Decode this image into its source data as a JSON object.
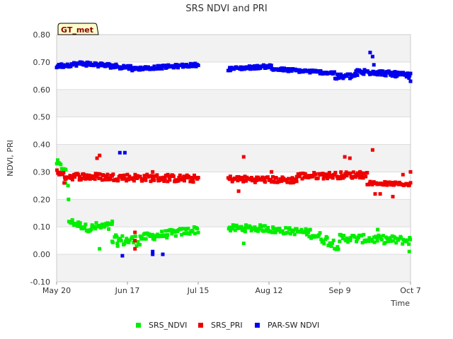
{
  "chart_data": {
    "type": "scatter",
    "title": "SRS NDVI and PRI",
    "xlabel": "Time",
    "ylabel": "NDVI, PRI",
    "badge": "GT_met",
    "ylim": [
      -0.1,
      0.8
    ],
    "yticks": [
      -0.1,
      0.0,
      0.1,
      0.2,
      0.3,
      0.4,
      0.5,
      0.6,
      0.7,
      0.8
    ],
    "ytick_labels": [
      "-0.10",
      "0.00",
      "0.10",
      "0.20",
      "0.30",
      "0.40",
      "0.50",
      "0.60",
      "0.70",
      "0.80"
    ],
    "xlim_days": [
      0,
      140
    ],
    "xticks": [
      {
        "day": 0,
        "label": "May 20"
      },
      {
        "day": 28,
        "label": "Jun 17"
      },
      {
        "day": 56,
        "label": "Jul 15"
      },
      {
        "day": 84,
        "label": "Aug 12"
      },
      {
        "day": 112,
        "label": "Sep 9"
      },
      {
        "day": 140,
        "label": "Oct 7"
      }
    ],
    "legend": [
      "SRS_NDVI",
      "SRS_PRI",
      "PAR-SW NDVI"
    ],
    "colors": {
      "SRS_NDVI": "#00ee00",
      "SRS_PRI": "#ee0000",
      "PAR-SW NDVI": "#0000ee",
      "band": "#f2f2f2",
      "grid": "#dddddd",
      "badge_bg": "#ffffcc"
    },
    "gap_days": [
      57,
      68
    ],
    "series": [
      {
        "name": "SRS_NDVI",
        "segments": [
          {
            "from": 0,
            "to": 3.5,
            "start": 0.335,
            "end": 0.3,
            "jitter": 0.012,
            "n": 10
          },
          {
            "from": 5,
            "to": 14,
            "start": 0.12,
            "end": 0.09,
            "jitter": 0.012,
            "n": 26
          },
          {
            "from": 14,
            "to": 22,
            "start": 0.1,
            "end": 0.1,
            "jitter": 0.016,
            "n": 20
          },
          {
            "from": 22,
            "to": 33,
            "start": 0.05,
            "end": 0.05,
            "jitter": 0.02,
            "n": 26
          },
          {
            "from": 33,
            "to": 56,
            "start": 0.06,
            "end": 0.09,
            "jitter": 0.014,
            "n": 58
          },
          {
            "from": 68,
            "to": 84,
            "start": 0.095,
            "end": 0.095,
            "jitter": 0.012,
            "n": 42
          },
          {
            "from": 84,
            "to": 100,
            "start": 0.09,
            "end": 0.08,
            "jitter": 0.012,
            "n": 42
          },
          {
            "from": 100,
            "to": 112,
            "start": 0.08,
            "end": 0.03,
            "jitter": 0.018,
            "n": 30
          },
          {
            "from": 112,
            "to": 140,
            "start": 0.06,
            "end": 0.05,
            "jitter": 0.015,
            "n": 70
          }
        ],
        "points": [
          [
            3.5,
            0.26
          ],
          [
            4.5,
            0.25
          ],
          [
            4.7,
            0.2
          ],
          [
            17,
            0.02
          ],
          [
            22,
            0.12
          ],
          [
            24,
            0.04
          ],
          [
            74,
            0.04
          ],
          [
            127,
            0.09
          ],
          [
            139.5,
            0.01
          ]
        ]
      },
      {
        "name": "SRS_PRI",
        "segments": [
          {
            "from": 0,
            "to": 2,
            "start": 0.3,
            "end": 0.3,
            "jitter": 0.012,
            "n": 6
          },
          {
            "from": 2,
            "to": 56,
            "start": 0.285,
            "end": 0.275,
            "jitter": 0.013,
            "n": 150
          },
          {
            "from": 68,
            "to": 95,
            "start": 0.275,
            "end": 0.27,
            "jitter": 0.011,
            "n": 75
          },
          {
            "from": 95,
            "to": 123,
            "start": 0.285,
            "end": 0.29,
            "jitter": 0.012,
            "n": 70
          },
          {
            "from": 123,
            "to": 140,
            "start": 0.26,
            "end": 0.255,
            "jitter": 0.006,
            "n": 44
          }
        ],
        "points": [
          [
            1,
            0.29
          ],
          [
            3,
            0.26
          ],
          [
            17,
            0.36
          ],
          [
            16,
            0.35
          ],
          [
            31,
            0.08
          ],
          [
            31,
            0.05
          ],
          [
            31,
            0.02
          ],
          [
            38,
            0.3
          ],
          [
            44,
            0.29
          ],
          [
            72,
            0.23
          ],
          [
            74,
            0.355
          ],
          [
            85,
            0.3
          ],
          [
            102,
            0.29
          ],
          [
            114,
            0.355
          ],
          [
            116,
            0.35
          ],
          [
            120,
            0.3
          ],
          [
            125,
            0.38
          ],
          [
            126,
            0.22
          ],
          [
            128,
            0.22
          ],
          [
            133,
            0.21
          ],
          [
            137,
            0.29
          ],
          [
            140,
            0.3
          ]
        ]
      },
      {
        "name": "PAR-SW NDVI",
        "segments": [
          {
            "from": 0,
            "to": 10,
            "start": 0.685,
            "end": 0.695,
            "jitter": 0.007,
            "n": 32
          },
          {
            "from": 10,
            "to": 30,
            "start": 0.695,
            "end": 0.68,
            "jitter": 0.008,
            "n": 60
          },
          {
            "from": 30,
            "to": 56,
            "start": 0.675,
            "end": 0.69,
            "jitter": 0.006,
            "n": 70
          },
          {
            "from": 68,
            "to": 85,
            "start": 0.675,
            "end": 0.685,
            "jitter": 0.006,
            "n": 52
          },
          {
            "from": 85,
            "to": 110,
            "start": 0.675,
            "end": 0.66,
            "jitter": 0.006,
            "n": 70
          },
          {
            "from": 110,
            "to": 118,
            "start": 0.645,
            "end": 0.65,
            "jitter": 0.01,
            "n": 24
          },
          {
            "from": 118,
            "to": 124,
            "start": 0.66,
            "end": 0.665,
            "jitter": 0.012,
            "n": 22
          },
          {
            "from": 124,
            "to": 140,
            "start": 0.665,
            "end": 0.65,
            "jitter": 0.009,
            "n": 66
          }
        ],
        "points": [
          [
            25,
            0.37
          ],
          [
            27,
            0.37
          ],
          [
            26,
            -0.005
          ],
          [
            38,
            0.01
          ],
          [
            38,
            0.0
          ],
          [
            42,
            0.0
          ],
          [
            124,
            0.735
          ],
          [
            125,
            0.72
          ],
          [
            125.5,
            0.69
          ],
          [
            140,
            0.63
          ]
        ]
      }
    ]
  }
}
